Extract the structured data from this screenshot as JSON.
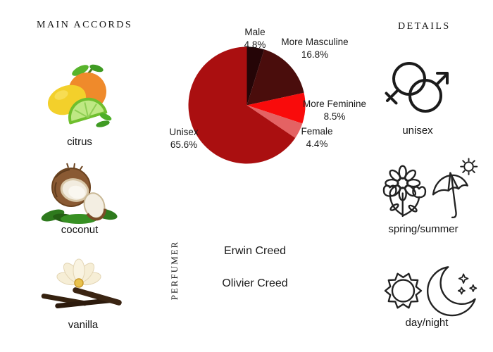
{
  "accords": {
    "header": "MAIN ACCORDS",
    "items": [
      {
        "label": "citrus",
        "icon": "citrus-icon"
      },
      {
        "label": "coconut",
        "icon": "coconut-icon"
      },
      {
        "label": "vanilla",
        "icon": "vanilla-icon"
      }
    ]
  },
  "chart_data": {
    "type": "pie",
    "title": "",
    "start_angle_deg": 0,
    "direction": "clockwise",
    "labels_show_pct": true,
    "slices": [
      {
        "label": "Male",
        "pct": 4.8,
        "color": "#250507"
      },
      {
        "label": "More Masculine",
        "pct": 16.8,
        "color": "#4a0d0c"
      },
      {
        "label": "More Feminine",
        "pct": 8.5,
        "color": "#f90b0b"
      },
      {
        "label": "Female",
        "pct": 4.4,
        "color": "#e46263"
      },
      {
        "label": "Unisex",
        "pct": 65.6,
        "color": "#aa0f10"
      }
    ]
  },
  "perfumer": {
    "header": "PERFUMER",
    "names": [
      "Erwin Creed",
      "Olivier Creed"
    ]
  },
  "details": {
    "header": "DETAILS",
    "items": [
      {
        "label": "unisex",
        "icon": "unisex-gender-icon"
      },
      {
        "label": "spring/summer",
        "icon": "flowers-umbrella-icon"
      },
      {
        "label": "day/night",
        "icon": "sun-moon-icon"
      }
    ]
  }
}
